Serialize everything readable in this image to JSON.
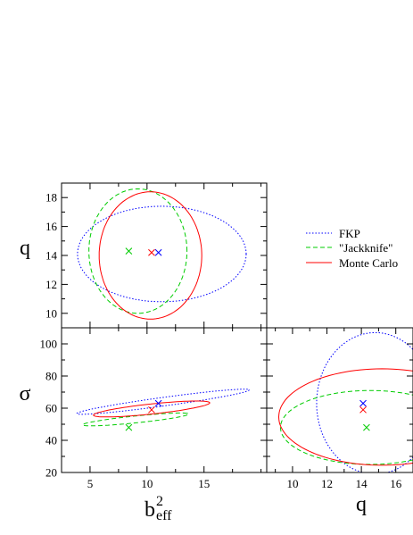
{
  "chart_data": {
    "type": "scatter",
    "title": "",
    "legend": {
      "placement": "right-middle",
      "entries": [
        {
          "name": "FKP",
          "color": "#0000ff",
          "dash": "dotted"
        },
        {
          "name": "\"Jackknife\"",
          "color": "#00cc00",
          "dash": "dashed"
        },
        {
          "name": "Monte Carlo",
          "color": "#ff0000",
          "dash": "solid"
        }
      ]
    },
    "axes": {
      "b2eff": {
        "label": "b",
        "sup": "2",
        "sub": "eff",
        "range": [
          2.5,
          20.5
        ],
        "ticks": [
          5,
          10,
          15
        ]
      },
      "q": {
        "label": "q",
        "range_x": [
          8.5,
          17
        ],
        "ticks_x": [
          10,
          12,
          14,
          16
        ],
        "range_y": [
          9,
          19
        ],
        "ticks_y": [
          10,
          12,
          14,
          16,
          18
        ]
      },
      "sigma": {
        "label": "σ",
        "range": [
          20,
          110
        ],
        "ticks": [
          20,
          40,
          60,
          80,
          100
        ]
      }
    },
    "panels": [
      {
        "id": "q-vs-b2eff",
        "x_axis": "b2eff",
        "y_axis": "q",
        "xlim": [
          2.5,
          20.5
        ],
        "ylim": [
          9,
          19
        ],
        "show_x_tick_labels": false,
        "yticks": [
          10,
          12,
          14,
          16,
          18
        ],
        "markers": [
          {
            "series": "FKP",
            "x": 11.0,
            "y": 14.2
          },
          {
            "series": "\"Jackknife\"",
            "x": 8.4,
            "y": 14.3
          },
          {
            "series": "Monte Carlo",
            "x": 10.4,
            "y": 14.2
          }
        ],
        "ellipses": [
          {
            "series": "FKP",
            "cx": 11.3,
            "cy": 14.1,
            "rx": 7.4,
            "ry": 3.3,
            "angle": 0
          },
          {
            "series": "\"Jackknife\"",
            "cx": 9.2,
            "cy": 14.3,
            "rx": 4.3,
            "ry": 4.3,
            "angle": 0
          },
          {
            "series": "Monte Carlo",
            "cx": 10.3,
            "cy": 14.0,
            "rx": 4.5,
            "ry": 4.4,
            "angle": 0
          }
        ]
      },
      {
        "id": "sigma-vs-b2eff",
        "x_axis": "b2eff",
        "y_axis": "sigma",
        "xlim": [
          2.5,
          20.5
        ],
        "ylim": [
          20,
          110
        ],
        "xticks": [
          5,
          10,
          15
        ],
        "yticks": [
          20,
          40,
          60,
          80,
          100
        ],
        "markers": [
          {
            "series": "FKP",
            "x": 11.0,
            "y": 63
          },
          {
            "series": "\"Jackknife\"",
            "x": 8.4,
            "y": 48
          },
          {
            "series": "Monte Carlo",
            "x": 10.4,
            "y": 59
          }
        ],
        "ellipses": [
          {
            "series": "FKP",
            "cx": 11.4,
            "cy": 64,
            "rx": 10.7,
            "ry": 1.9,
            "angle": 46
          },
          {
            "series": "\"Jackknife\"",
            "cx": 9.0,
            "cy": 53,
            "rx": 5.9,
            "ry": 1.7,
            "angle": 40
          },
          {
            "series": "Monte Carlo",
            "cx": 10.4,
            "cy": 59.5,
            "rx": 6.7,
            "ry": 2.4,
            "angle": 44
          }
        ]
      },
      {
        "id": "sigma-vs-q",
        "x_axis": "q",
        "y_axis": "sigma",
        "xlim": [
          8.5,
          17
        ],
        "ylim": [
          20,
          110
        ],
        "xticks": [
          10,
          12,
          14,
          16
        ],
        "show_y_tick_labels": false,
        "markers": [
          {
            "series": "FKP",
            "x": 14.1,
            "y": 63
          },
          {
            "series": "\"Jackknife\"",
            "x": 14.3,
            "y": 48
          },
          {
            "series": "Monte Carlo",
            "x": 14.1,
            "y": 59
          }
        ],
        "ellipses": [
          {
            "series": "FKP",
            "cx": 14.8,
            "cy": 63,
            "rx": 3.4,
            "ry": 44,
            "angle": 0
          },
          {
            "series": "\"Jackknife\"",
            "cx": 14.5,
            "cy": 48,
            "rx": 5.2,
            "ry": 23,
            "angle": 0
          },
          {
            "series": "Monte Carlo",
            "cx": 15.2,
            "cy": 54.5,
            "rx": 6.0,
            "ry": 30,
            "angle": 0
          }
        ]
      }
    ]
  }
}
